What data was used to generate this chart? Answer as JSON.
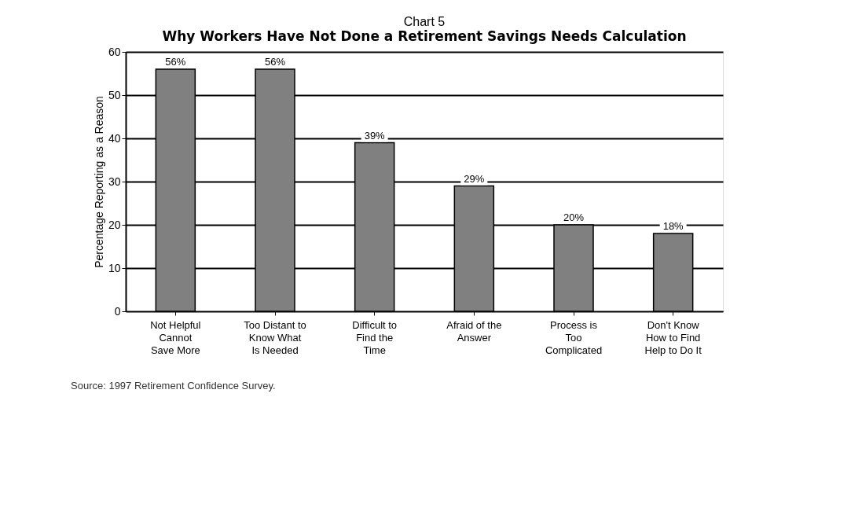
{
  "chart_data": {
    "type": "bar",
    "title": "Chart 5",
    "subtitle": "Why Workers Have Not Done a Retirement Savings Needs Calculation",
    "ylabel": "Percentage Reporting as a Reason",
    "categories": [
      "Not Helpful\nCannot\nSave More",
      "Too Distant to\nKnow What\nIs Needed",
      "Difficult to\nFind the\nTime",
      "Afraid of the\nAnswer",
      "Process is\nToo\nComplicated",
      "Don't Know\nHow to Find\nHelp to Do It"
    ],
    "values": [
      56,
      56,
      39,
      29,
      20,
      18
    ],
    "value_labels": [
      "56%",
      "56%",
      "39%",
      "29%",
      "20%",
      "18%"
    ],
    "color": "#808080",
    "ylim": [
      0,
      60
    ],
    "yticks": [
      0,
      10,
      20,
      30,
      40,
      50,
      60
    ],
    "grid": "y",
    "annotations": [
      "Source: 1997 Retirement Confidence Survey."
    ]
  }
}
